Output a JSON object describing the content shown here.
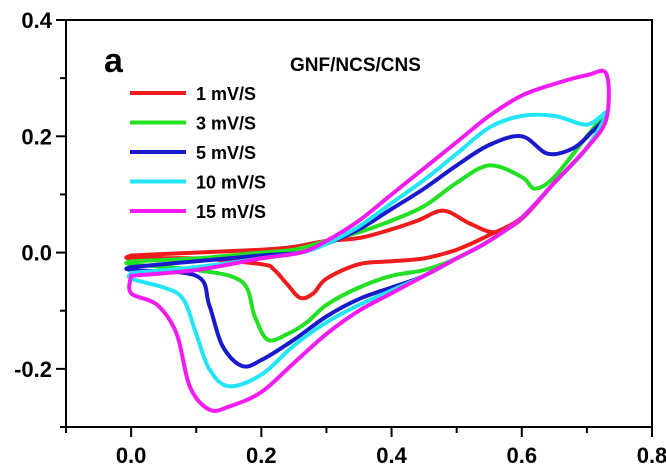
{
  "chart_data": {
    "type": "line",
    "panel_label": "a",
    "title": "GNF/NCS/CNS",
    "xlabel": "",
    "ylabel": "",
    "xlim": [
      -0.1,
      0.8
    ],
    "ylim": [
      -0.3,
      0.4
    ],
    "x_ticks": [
      0.0,
      0.2,
      0.4,
      0.6,
      0.8
    ],
    "x_tick_labels": [
      "0.0",
      "0.2",
      "0.4",
      "0.6",
      "0.8"
    ],
    "y_ticks": [
      -0.2,
      0.0,
      0.2,
      0.4
    ],
    "y_tick_labels": [
      "-0.2",
      "0.0",
      "0.2",
      "0.4"
    ],
    "grid": false,
    "legend_position": "top-left",
    "series": [
      {
        "name": "1 mV/S",
        "color": "#ee1c1c",
        "x": [
          0.0,
          0.1,
          0.2,
          0.25,
          0.3,
          0.35,
          0.4,
          0.44,
          0.48,
          0.52,
          0.56,
          0.6,
          0.65,
          0.7,
          0.73,
          0.7,
          0.65,
          0.6,
          0.55,
          0.5,
          0.45,
          0.4,
          0.35,
          0.3,
          0.28,
          0.26,
          0.24,
          0.22,
          0.2,
          0.1,
          0.0
        ],
        "y": [
          -0.005,
          0.0,
          0.005,
          0.01,
          0.02,
          0.025,
          0.04,
          0.055,
          0.072,
          0.05,
          0.035,
          0.058,
          0.12,
          0.18,
          0.23,
          0.18,
          0.12,
          0.06,
          0.03,
          0.005,
          -0.01,
          -0.015,
          -0.02,
          -0.045,
          -0.07,
          -0.078,
          -0.055,
          -0.03,
          -0.02,
          -0.01,
          -0.01
        ]
      },
      {
        "name": "3 mV/S",
        "color": "#22e022",
        "x": [
          0.0,
          0.1,
          0.2,
          0.25,
          0.3,
          0.35,
          0.4,
          0.45,
          0.5,
          0.55,
          0.6,
          0.62,
          0.65,
          0.7,
          0.73,
          0.7,
          0.65,
          0.6,
          0.55,
          0.5,
          0.45,
          0.4,
          0.35,
          0.3,
          0.27,
          0.24,
          0.21,
          0.19,
          0.17,
          0.1,
          0.0
        ],
        "y": [
          -0.015,
          -0.01,
          0.0,
          0.005,
          0.02,
          0.035,
          0.055,
          0.08,
          0.12,
          0.15,
          0.13,
          0.11,
          0.13,
          0.2,
          0.24,
          0.18,
          0.12,
          0.06,
          0.02,
          -0.01,
          -0.03,
          -0.04,
          -0.06,
          -0.09,
          -0.12,
          -0.14,
          -0.15,
          -0.11,
          -0.05,
          -0.03,
          -0.02
        ]
      },
      {
        "name": "5 mV/S",
        "color": "#1a1acc",
        "x": [
          0.0,
          0.1,
          0.2,
          0.26,
          0.3,
          0.35,
          0.4,
          0.45,
          0.5,
          0.55,
          0.6,
          0.64,
          0.68,
          0.71,
          0.73,
          0.7,
          0.65,
          0.6,
          0.55,
          0.5,
          0.45,
          0.4,
          0.35,
          0.3,
          0.25,
          0.2,
          0.17,
          0.14,
          0.12,
          0.1,
          0.0
        ],
        "y": [
          -0.025,
          -0.015,
          -0.005,
          0.0,
          0.015,
          0.04,
          0.075,
          0.11,
          0.15,
          0.185,
          0.2,
          0.17,
          0.18,
          0.21,
          0.23,
          0.18,
          0.12,
          0.06,
          0.02,
          -0.01,
          -0.04,
          -0.06,
          -0.08,
          -0.11,
          -0.15,
          -0.185,
          -0.195,
          -0.16,
          -0.09,
          -0.04,
          -0.03
        ]
      },
      {
        "name": "10 mV/S",
        "color": "#22e5f5",
        "x": [
          0.0,
          0.1,
          0.2,
          0.26,
          0.3,
          0.35,
          0.4,
          0.45,
          0.5,
          0.55,
          0.6,
          0.65,
          0.7,
          0.73,
          0.7,
          0.65,
          0.6,
          0.55,
          0.5,
          0.45,
          0.4,
          0.35,
          0.3,
          0.25,
          0.2,
          0.15,
          0.12,
          0.1,
          0.08,
          0.05,
          0.0
        ],
        "y": [
          -0.035,
          -0.025,
          -0.01,
          0.0,
          0.015,
          0.045,
          0.085,
          0.125,
          0.17,
          0.215,
          0.235,
          0.235,
          0.22,
          0.24,
          0.18,
          0.12,
          0.06,
          0.02,
          -0.01,
          -0.04,
          -0.065,
          -0.09,
          -0.12,
          -0.16,
          -0.21,
          -0.23,
          -0.2,
          -0.14,
          -0.08,
          -0.06,
          -0.045
        ]
      },
      {
        "name": "15 mV/S",
        "color": "#f21cf2",
        "x": [
          0.0,
          0.1,
          0.2,
          0.26,
          0.3,
          0.35,
          0.4,
          0.45,
          0.5,
          0.55,
          0.6,
          0.65,
          0.7,
          0.73,
          0.73,
          0.7,
          0.65,
          0.6,
          0.55,
          0.5,
          0.45,
          0.4,
          0.35,
          0.3,
          0.25,
          0.2,
          0.15,
          0.12,
          0.09,
          0.07,
          0.04,
          0.0
        ],
        "y": [
          -0.04,
          -0.03,
          -0.01,
          0.0,
          0.02,
          0.055,
          0.1,
          0.145,
          0.19,
          0.235,
          0.27,
          0.29,
          0.305,
          0.307,
          0.23,
          0.18,
          0.12,
          0.06,
          0.02,
          -0.01,
          -0.04,
          -0.07,
          -0.1,
          -0.14,
          -0.19,
          -0.24,
          -0.265,
          -0.27,
          -0.23,
          -0.14,
          -0.09,
          -0.07
        ]
      }
    ]
  }
}
